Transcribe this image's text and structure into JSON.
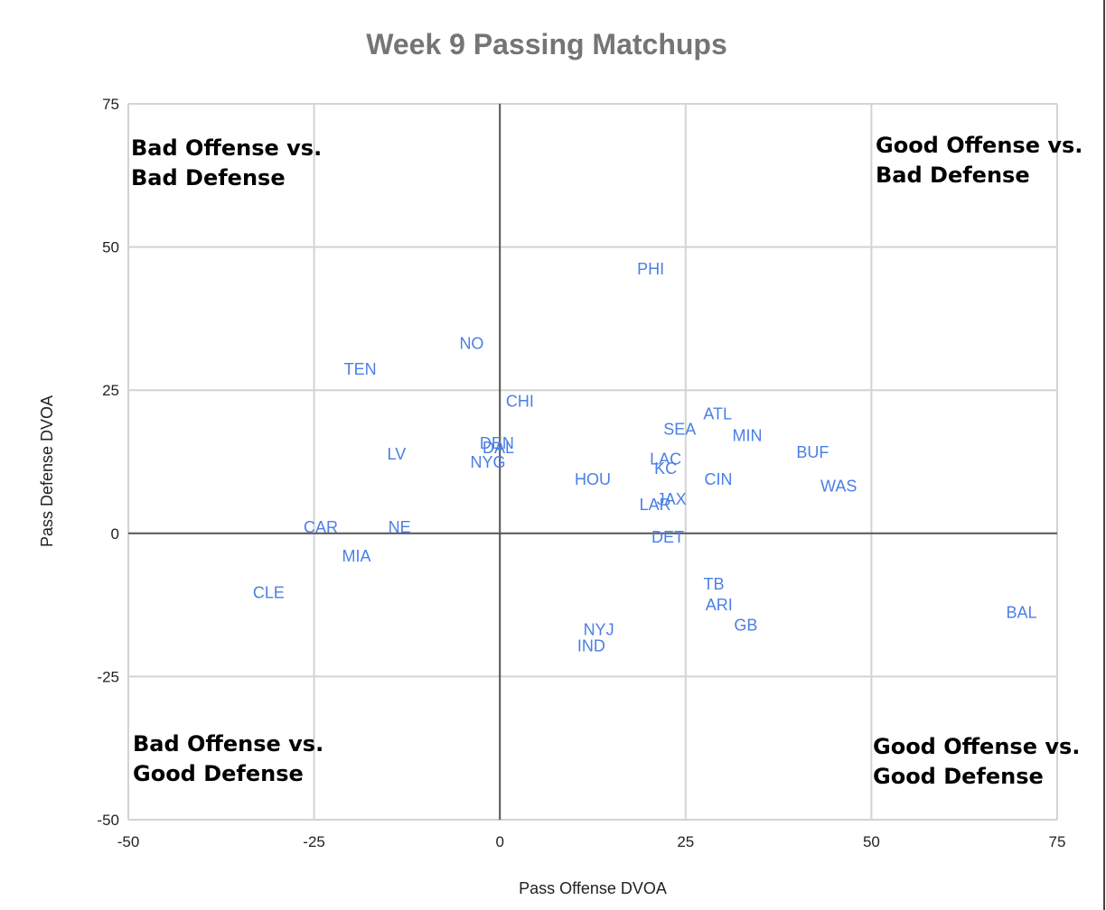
{
  "chart_data": {
    "type": "scatter",
    "title": "Week 9 Passing Matchups",
    "xlabel": "Pass Offense DVOA",
    "ylabel": "Pass Defense DVOA",
    "xlim": [
      -50,
      75
    ],
    "ylim": [
      -50,
      75
    ],
    "x_ticks": [
      "-50",
      "-25",
      "0",
      "25",
      "50",
      "75"
    ],
    "y_ticks": [
      "75",
      "50",
      "25",
      "0",
      "-25",
      "-50"
    ],
    "grid": true,
    "legend": "none",
    "label_color": "#4a7fe6",
    "quadrant_labels": {
      "top_left": [
        "Bad Offense vs.",
        "Bad Defense"
      ],
      "top_right": [
        "Good Offense vs.",
        "Bad Defense"
      ],
      "bottom_left": [
        "Bad Offense vs.",
        "Good Defense"
      ],
      "bottom_right": [
        "Good Offense vs.",
        "Good Defense"
      ]
    },
    "points": [
      {
        "label": "PHI",
        "x": 20.3,
        "y": 46.3
      },
      {
        "label": "NO",
        "x": -3.8,
        "y": 33.3
      },
      {
        "label": "TEN",
        "x": -18.8,
        "y": 28.8
      },
      {
        "label": "CHI",
        "x": 2.7,
        "y": 23.2
      },
      {
        "label": "LV",
        "x": -13.9,
        "y": 14.0
      },
      {
        "label": "DEN",
        "x": -0.4,
        "y": 15.9
      },
      {
        "label": "DAL",
        "x": -0.2,
        "y": 15.1
      },
      {
        "label": "NYG",
        "x": -1.6,
        "y": 12.6
      },
      {
        "label": "HOU",
        "x": 12.5,
        "y": 9.6
      },
      {
        "label": "SEA",
        "x": 24.2,
        "y": 18.3
      },
      {
        "label": "ATL",
        "x": 29.3,
        "y": 21.0
      },
      {
        "label": "MIN",
        "x": 33.3,
        "y": 17.2
      },
      {
        "label": "BUF",
        "x": 42.1,
        "y": 14.3
      },
      {
        "label": "WAS",
        "x": 45.6,
        "y": 8.4
      },
      {
        "label": "LAC",
        "x": 22.3,
        "y": 13.1
      },
      {
        "label": "KC",
        "x": 22.3,
        "y": 11.5
      },
      {
        "label": "CIN",
        "x": 29.4,
        "y": 9.6
      },
      {
        "label": "JAX",
        "x": 23.1,
        "y": 6.1
      },
      {
        "label": "LAR",
        "x": 20.9,
        "y": 5.2
      },
      {
        "label": "DET",
        "x": 22.6,
        "y": -0.5
      },
      {
        "label": "CAR",
        "x": -24.1,
        "y": 1.2
      },
      {
        "label": "NE",
        "x": -13.5,
        "y": 1.2
      },
      {
        "label": "MIA",
        "x": -19.3,
        "y": -3.8
      },
      {
        "label": "CLE",
        "x": -31.1,
        "y": -10.2
      },
      {
        "label": "TB",
        "x": 28.8,
        "y": -8.7
      },
      {
        "label": "ARI",
        "x": 29.5,
        "y": -12.3
      },
      {
        "label": "GB",
        "x": 33.1,
        "y": -15.9
      },
      {
        "label": "NYJ",
        "x": 13.3,
        "y": -16.7
      },
      {
        "label": "IND",
        "x": 12.3,
        "y": -19.5
      },
      {
        "label": "BAL",
        "x": 70.2,
        "y": -13.7
      }
    ]
  }
}
